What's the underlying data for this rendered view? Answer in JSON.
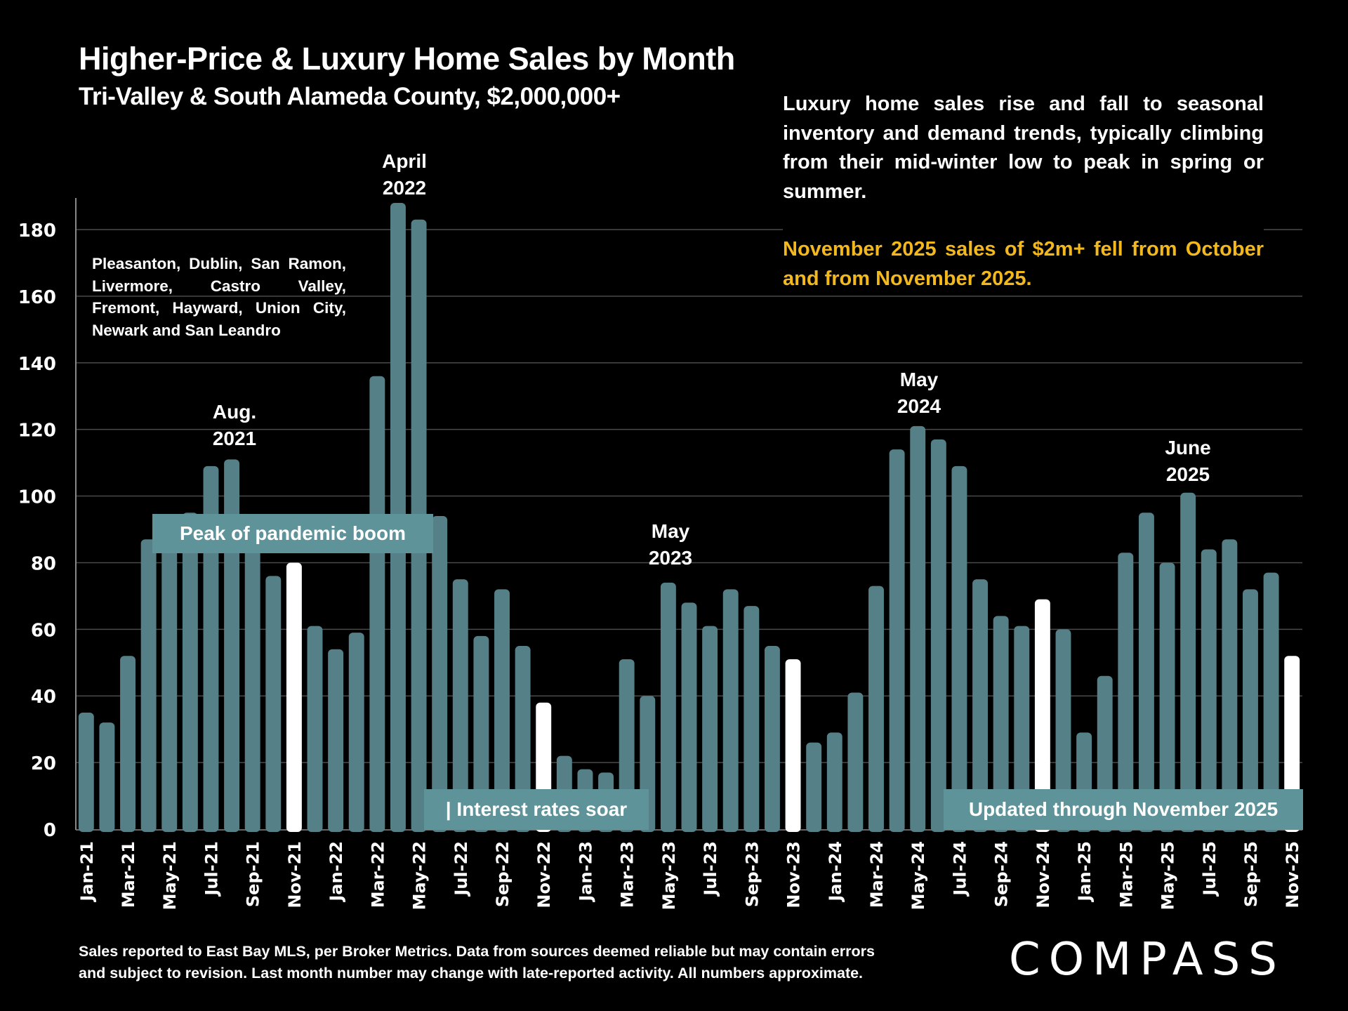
{
  "header": {
    "title": "Higher-Price & Luxury Home Sales by Month",
    "subtitle": "Tri-Valley & South Alameda County, $2,000,000+"
  },
  "commentary": {
    "text": "Luxury home sales rise and fall to seasonal inventory and demand trends, typically climbing from their mid-winter low to peak in spring or summer.",
    "highlight": "November 2025 sales of $2m+ fell from October and from November 2025.",
    "highlight_color": "#f2b81c"
  },
  "area_note": "Pleasanton, Dublin, San Ramon, Livermore, Castro Valley, Fremont, Hayward, Union City, Newark and San Leandro",
  "annotations": {
    "aug2021": [
      "Aug.",
      "2021"
    ],
    "apr2022": [
      "April",
      "2022"
    ],
    "may2023": [
      "May",
      "2023"
    ],
    "may2024": [
      "May",
      "2024"
    ],
    "jun2025": [
      "June",
      "2025"
    ]
  },
  "banners": {
    "pandemic": "Peak of pandemic boom",
    "rates": "| Interest rates soar",
    "updated": "Updated through November 2025"
  },
  "footnote": {
    "line1": "Sales reported to East Bay MLS, per Broker Metrics. Data from sources deemed reliable but may contain errors",
    "line2": "and subject to revision. Last month number may change with late-reported activity. All numbers approximate."
  },
  "logo": "COMPASS",
  "colors": {
    "bar": "#568087",
    "highlight_bar": "#ffffff",
    "banner": "#5e9399",
    "background": "#000000"
  },
  "chart_data": {
    "type": "bar",
    "title": "Higher-Price & Luxury Home Sales by Month",
    "subtitle": "Tri-Valley & South Alameda County, $2,000,000+",
    "xlabel": "",
    "ylabel": "",
    "ylim": [
      0,
      190
    ],
    "yticks": [
      0,
      20,
      40,
      60,
      80,
      100,
      120,
      140,
      160,
      180
    ],
    "grid": true,
    "categories": [
      "Jan-21",
      "Feb-21",
      "Mar-21",
      "Apr-21",
      "May-21",
      "Jun-21",
      "Jul-21",
      "Aug-21",
      "Sep-21",
      "Oct-21",
      "Nov-21",
      "Dec-21",
      "Jan-22",
      "Feb-22",
      "Mar-22",
      "Apr-22",
      "May-22",
      "Jun-22",
      "Jul-22",
      "Aug-22",
      "Sep-22",
      "Oct-22",
      "Nov-22",
      "Dec-22",
      "Jan-23",
      "Feb-23",
      "Mar-23",
      "Apr-23",
      "May-23",
      "Jun-23",
      "Jul-23",
      "Aug-23",
      "Sep-23",
      "Oct-23",
      "Nov-23",
      "Dec-23",
      "Jan-24",
      "Feb-24",
      "Mar-24",
      "Apr-24",
      "May-24",
      "Jun-24",
      "Jul-24",
      "Aug-24",
      "Sep-24",
      "Oct-24",
      "Nov-24",
      "Dec-24",
      "Jan-25",
      "Feb-25",
      "Mar-25",
      "Apr-25",
      "May-25",
      "Jun-25",
      "Jul-25",
      "Aug-25",
      "Sep-25",
      "Oct-25",
      "Nov-25"
    ],
    "xtick_labels_shown": [
      "Jan-21",
      "Mar-21",
      "May-21",
      "Jul-21",
      "Sep-21",
      "Nov-21",
      "Jan-22",
      "Mar-22",
      "May-22",
      "Jul-22",
      "Sep-22",
      "Nov-22",
      "Jan-23",
      "Mar-23",
      "May-23",
      "Jul-23",
      "Sep-23",
      "Nov-23",
      "Jan-24",
      "Mar-24",
      "May-24",
      "Jul-24",
      "Sep-24",
      "Nov-24",
      "Jan-25",
      "Mar-25",
      "May-25",
      "Jul-25",
      "Sep-25",
      "Nov-25"
    ],
    "values": [
      35,
      32,
      52,
      87,
      90,
      95,
      109,
      111,
      87,
      76,
      80,
      61,
      54,
      59,
      136,
      188,
      183,
      94,
      75,
      58,
      72,
      55,
      38,
      22,
      18,
      17,
      51,
      40,
      74,
      68,
      61,
      72,
      67,
      55,
      51,
      26,
      29,
      41,
      73,
      114,
      121,
      117,
      109,
      75,
      64,
      61,
      69,
      60,
      29,
      46,
      83,
      95,
      80,
      101,
      84,
      87,
      72,
      77,
      52
    ],
    "highlighted": [
      "Nov-21",
      "Nov-22",
      "Nov-23",
      "Nov-24",
      "Nov-25"
    ]
  }
}
